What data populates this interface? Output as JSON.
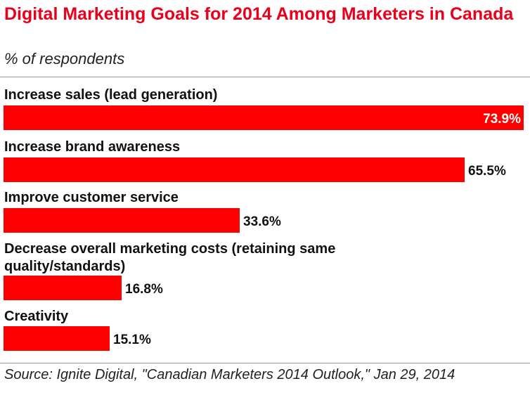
{
  "header": {
    "title": "Digital Marketing Goals for 2014 Among Marketers in Canada",
    "subtitle": "% of respondents"
  },
  "footer": {
    "source": "Source: Ignite Digital, \"Canadian Marketers 2014 Outlook,\" Jan 29, 2014"
  },
  "colors": {
    "bar": "#ff0000",
    "title": "#e8001c"
  },
  "chart_data": {
    "type": "bar",
    "orientation": "horizontal",
    "title": "Digital Marketing Goals for 2014 Among Marketers in Canada",
    "subtitle": "% of respondents",
    "categories": [
      [
        "Increase sales (lead generation)"
      ],
      [
        "Increase brand awareness"
      ],
      [
        "Improve customer service"
      ],
      [
        "Decrease overall marketing costs (retaining same",
        "quality/standards)"
      ],
      [
        "Creativity"
      ]
    ],
    "values": [
      73.9,
      65.5,
      33.6,
      16.8,
      15.1
    ],
    "value_labels": [
      "73.9%",
      "65.5%",
      "33.6%",
      "16.8%",
      "15.1%"
    ],
    "xlim": [
      0,
      73.9
    ],
    "grid": false,
    "legend": "none"
  }
}
